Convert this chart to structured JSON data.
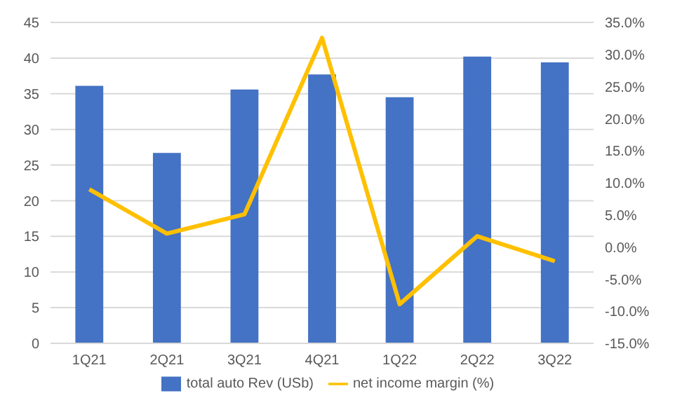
{
  "chart_data": {
    "type": "bar",
    "categories": [
      "1Q21",
      "2Q21",
      "3Q21",
      "4Q21",
      "1Q22",
      "2Q22",
      "3Q22"
    ],
    "series": [
      {
        "name": "total auto Rev (USb)",
        "color": "#4472c4",
        "values": [
          36.1,
          26.7,
          35.6,
          37.7,
          34.5,
          40.2,
          39.4
        ]
      },
      {
        "name": "net income margin (%)",
        "type": "line",
        "axis": "y2",
        "color": "#ffc000",
        "values": [
          9.0,
          2.1,
          5.1,
          32.6,
          -8.9,
          1.7,
          -2.2
        ]
      }
    ],
    "ylim": [
      0,
      45
    ],
    "yticks": [
      0,
      5,
      10,
      15,
      20,
      25,
      30,
      35,
      40,
      45
    ],
    "y2lim": [
      -15,
      35
    ],
    "y2ticks": [
      {
        "value": -15,
        "label": "-15.0%"
      },
      {
        "value": -10,
        "label": "-10.0%"
      },
      {
        "value": -5,
        "label": "-5.0%"
      },
      {
        "value": 0,
        "label": "0.0%"
      },
      {
        "value": 5,
        "label": "5.0%"
      },
      {
        "value": 10,
        "label": "10.0%"
      },
      {
        "value": 15,
        "label": "15.0%"
      },
      {
        "value": 20,
        "label": "20.0%"
      },
      {
        "value": 25,
        "label": "25.0%"
      },
      {
        "value": 30,
        "label": "30.0%"
      },
      {
        "value": 35,
        "label": "35.0%"
      }
    ],
    "grid": "y",
    "legend": "bottom",
    "marker": "none"
  }
}
